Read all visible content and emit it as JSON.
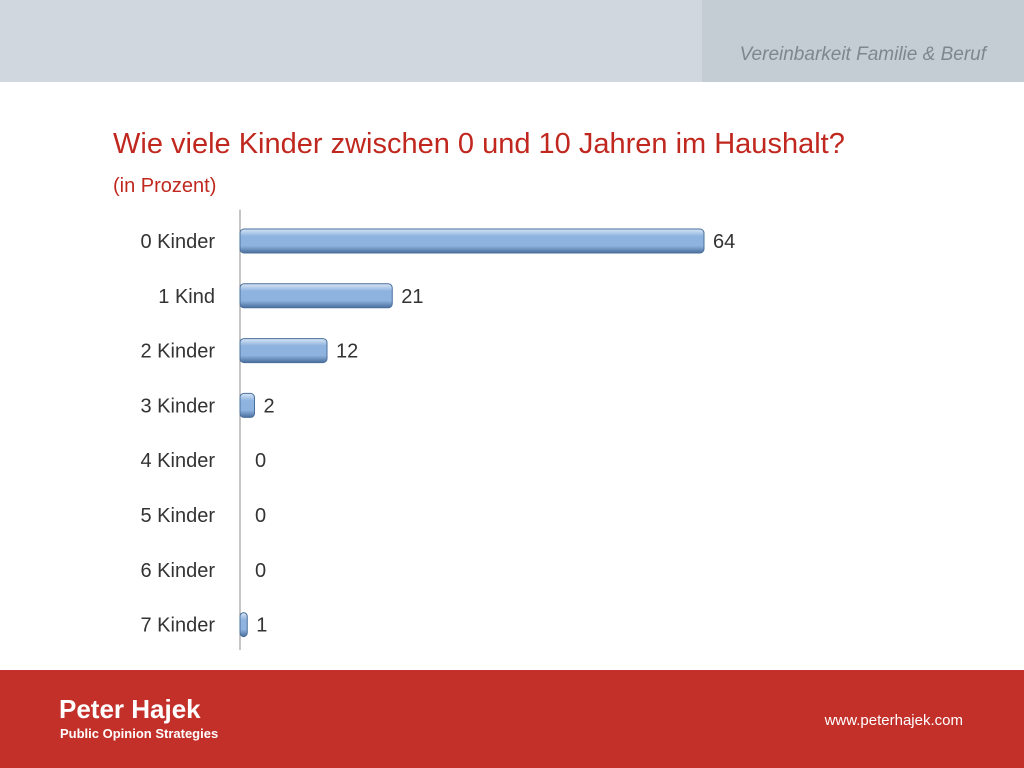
{
  "header": {
    "tag": "Vereinbarkeit Familie & Beruf"
  },
  "chart_data": {
    "type": "bar",
    "orientation": "horizontal",
    "title": "Wie viele Kinder zwischen 0 und 10 Jahren im Haushalt?",
    "subtitle": "(in Prozent)",
    "categories": [
      "0 Kinder",
      "1 Kind",
      "2 Kinder",
      "3 Kinder",
      "4 Kinder",
      "5 Kinder",
      "6 Kinder",
      "7 Kinder"
    ],
    "values": [
      64,
      21,
      12,
      2,
      0,
      0,
      0,
      1
    ],
    "value_labels": [
      "64",
      "21",
      "12",
      "2",
      "0",
      "0",
      "0",
      "1"
    ],
    "xlim": [
      0,
      100
    ],
    "xlabel": "",
    "ylabel": "",
    "grid": false,
    "bar_color": "#8fb3df",
    "bar_color_dark": "#4a6f9c",
    "bar_color_light": "#d8e6f6"
  },
  "footer": {
    "brand_name": "Peter Hajek",
    "brand_sub": "Public Opinion Strategies",
    "url": "www.peterhajek.com"
  }
}
